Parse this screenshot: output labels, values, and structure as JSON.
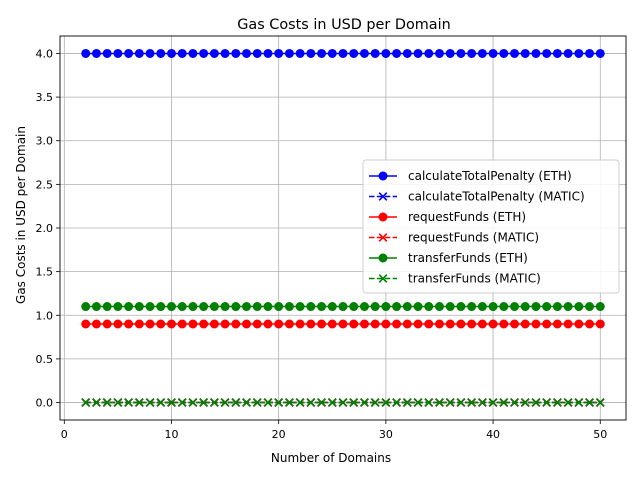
{
  "chart_data": {
    "type": "line",
    "title": "Gas Costs in USD per Domain",
    "xlabel": "Number of Domains",
    "ylabel": "Gas Costs in USD per Domain",
    "xlim": [
      -0.4,
      52.4
    ],
    "ylim": [
      -0.2,
      4.2
    ],
    "xticks": [
      0,
      10,
      20,
      30,
      40,
      50
    ],
    "yticks": [
      0.0,
      0.5,
      1.0,
      1.5,
      2.0,
      2.5,
      3.0,
      3.5,
      4.0
    ],
    "ytick_labels": [
      "0.0",
      "0.5",
      "1.0",
      "1.5",
      "2.0",
      "2.5",
      "3.0",
      "3.5",
      "4.0"
    ],
    "grid": true,
    "legend_position": "center-right",
    "x": [
      2,
      3,
      4,
      5,
      6,
      7,
      8,
      9,
      10,
      11,
      12,
      13,
      14,
      15,
      16,
      17,
      18,
      19,
      20,
      21,
      22,
      23,
      24,
      25,
      26,
      27,
      28,
      29,
      30,
      31,
      32,
      33,
      34,
      35,
      36,
      37,
      38,
      39,
      40,
      41,
      42,
      43,
      44,
      45,
      46,
      47,
      48,
      49,
      50
    ],
    "series": [
      {
        "name": "calculateTotalPenalty (ETH)",
        "color": "#0000ff",
        "linestyle": "solid",
        "marker": "circle",
        "constant_value": 4.0
      },
      {
        "name": "calculateTotalPenalty (MATIC)",
        "color": "#0000ff",
        "linestyle": "dashed",
        "marker": "x",
        "constant_value": 0.0
      },
      {
        "name": "requestFunds (ETH)",
        "color": "#ff0000",
        "linestyle": "solid",
        "marker": "circle",
        "constant_value": 0.9
      },
      {
        "name": "requestFunds (MATIC)",
        "color": "#ff0000",
        "linestyle": "dashed",
        "marker": "x",
        "constant_value": 0.0
      },
      {
        "name": "transferFunds (ETH)",
        "color": "#008000",
        "linestyle": "solid",
        "marker": "circle",
        "constant_value": 1.1
      },
      {
        "name": "transferFunds (MATIC)",
        "color": "#008000",
        "linestyle": "dashed",
        "marker": "x",
        "constant_value": 0.0
      }
    ]
  }
}
